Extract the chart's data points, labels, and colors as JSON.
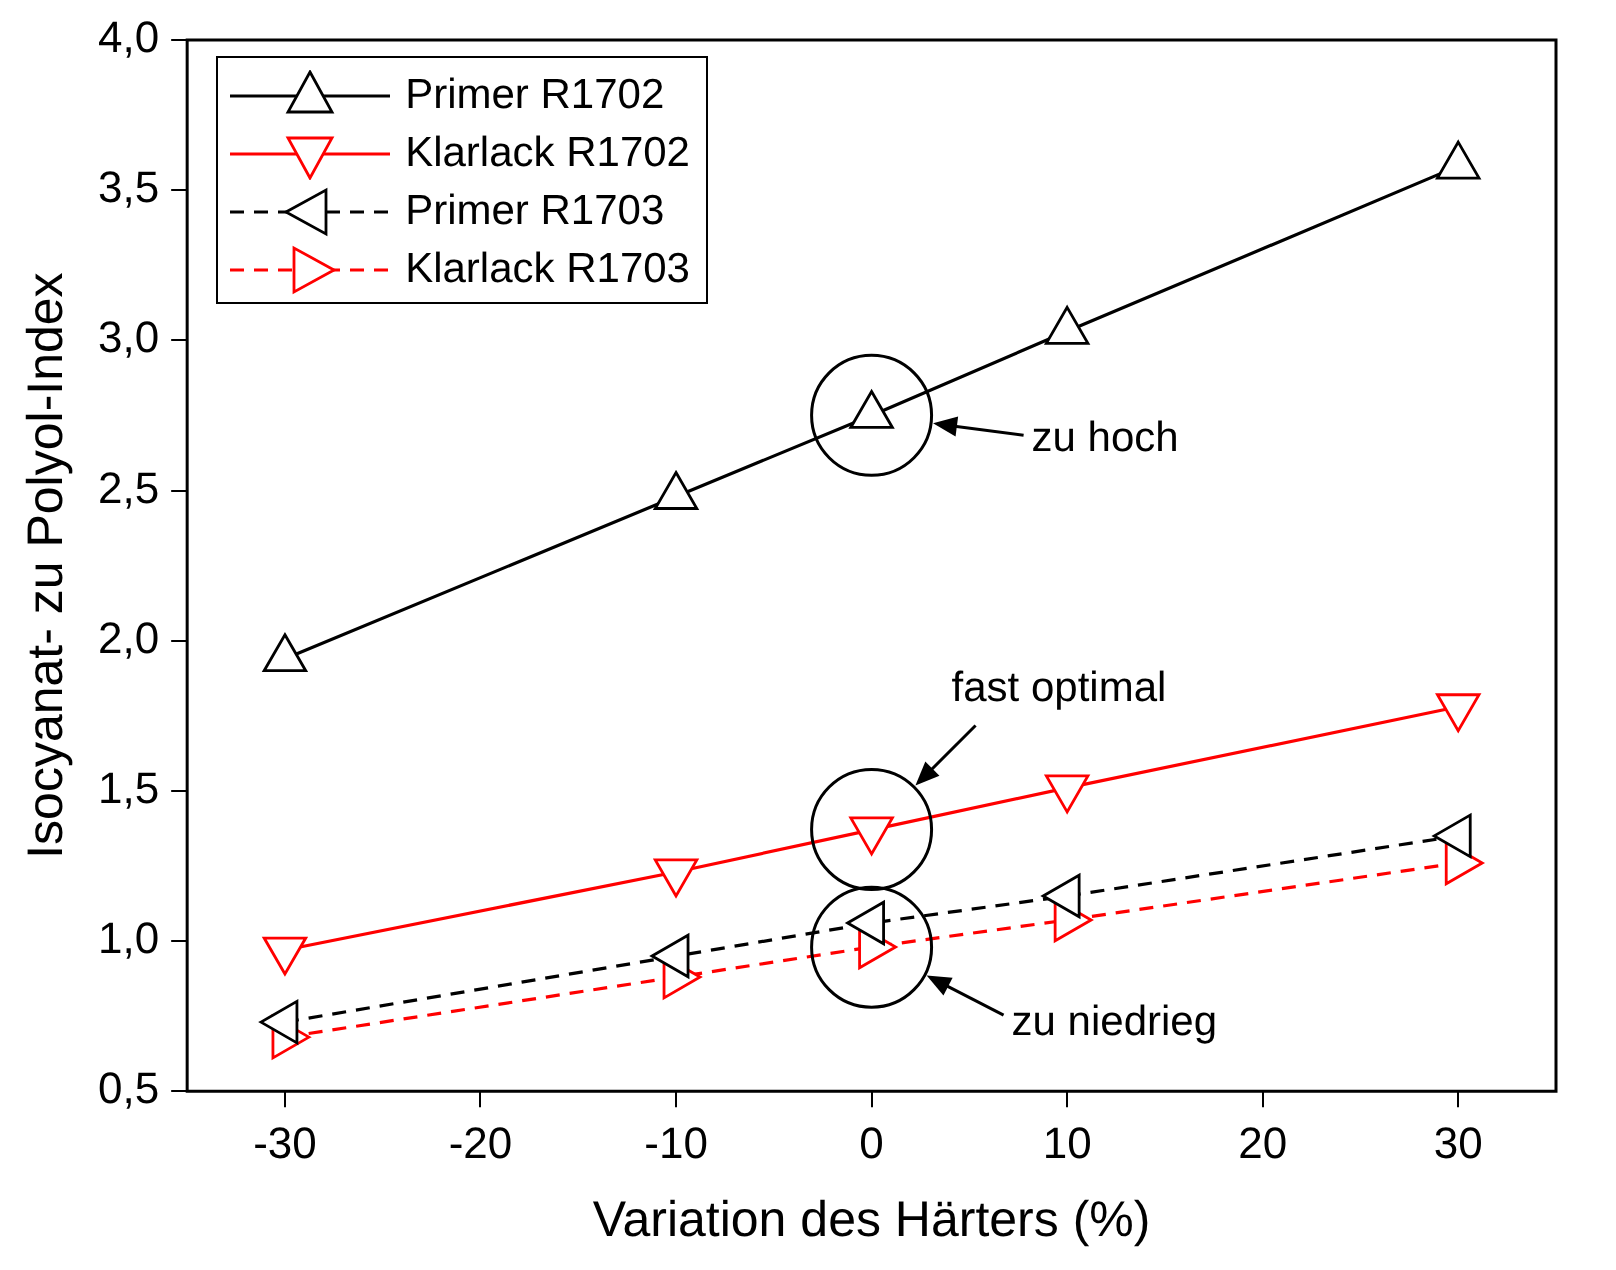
{
  "chart_data": {
    "type": "line",
    "xlabel": "Variation des Härters (%)",
    "ylabel": "Isocyanat- zu Polyol-Index",
    "x": [
      -30,
      -10,
      0,
      10,
      30
    ],
    "series": [
      {
        "name": "Primer R1702",
        "color": "#000000",
        "line_style": "solid",
        "values": [
          1.94,
          2.48,
          2.75,
          3.03,
          3.58
        ]
      },
      {
        "name": "Klarlack R1702",
        "color": "#ff0000",
        "line_style": "solid",
        "values": [
          0.97,
          1.23,
          1.37,
          1.51,
          1.78
        ]
      },
      {
        "name": "Primer R1703",
        "color": "#000000",
        "line_style": "dashed",
        "values": [
          0.73,
          0.95,
          1.06,
          1.15,
          1.35
        ]
      },
      {
        "name": "Klarlack R1703",
        "color": "#ff0000",
        "line_style": "dashed",
        "values": [
          0.68,
          0.88,
          0.98,
          1.07,
          1.26
        ]
      }
    ],
    "xlim": [
      -35,
      35
    ],
    "xticks": [
      -30,
      -20,
      -10,
      0,
      10,
      20,
      30
    ],
    "ylim": [
      0.5,
      4.0
    ],
    "yticks": [
      {
        "value": 0.5,
        "label": "0,5"
      },
      {
        "value": 1.0,
        "label": "1,0"
      },
      {
        "value": 1.5,
        "label": "1,5"
      },
      {
        "value": 2.0,
        "label": "2,0"
      },
      {
        "value": 2.5,
        "label": "2,5"
      },
      {
        "value": 3.0,
        "label": "3,0"
      },
      {
        "value": 3.5,
        "label": "3,5"
      },
      {
        "value": 4.0,
        "label": "4,0"
      }
    ],
    "grid": false,
    "legend": "top left",
    "marker": "triangle",
    "annotations": [
      "zu hoch",
      "fast optimal",
      "zu niedrieg"
    ]
  }
}
